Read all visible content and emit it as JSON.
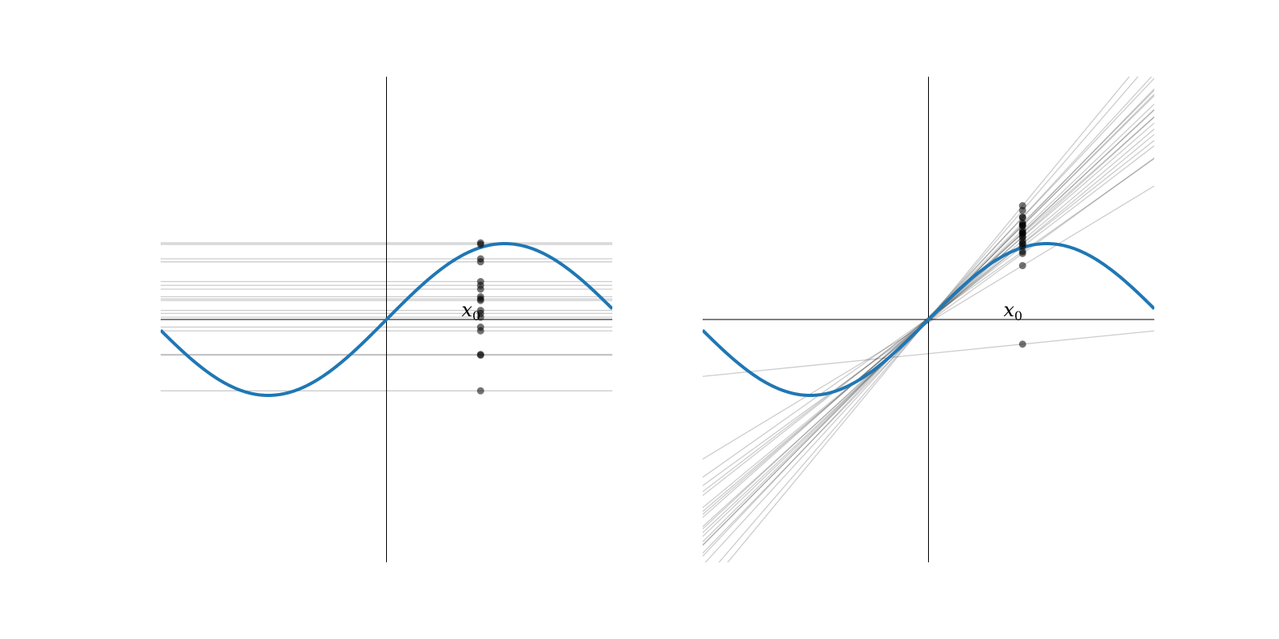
{
  "chart_data": [
    {
      "type": "line",
      "title": "",
      "xlabel": "",
      "ylabel": "",
      "xlim": [
        -3.0,
        3.0
      ],
      "ylim": [
        -3.2,
        3.2
      ],
      "grid": false,
      "axes": "centered",
      "curve": {
        "function": "sin",
        "color": "#1f77b4"
      },
      "x0": 1.25,
      "x0_label": "x",
      "x0_sub": "0",
      "fits": [
        {
          "intercept": 1.01,
          "slope": 0
        },
        {
          "intercept": 0.99,
          "slope": 0
        },
        {
          "intercept": 0.8,
          "slope": 0
        },
        {
          "intercept": 0.76,
          "slope": 0
        },
        {
          "intercept": 0.5,
          "slope": 0
        },
        {
          "intercept": 0.45,
          "slope": 0
        },
        {
          "intercept": 0.4,
          "slope": 0
        },
        {
          "intercept": 0.3,
          "slope": 0
        },
        {
          "intercept": 0.27,
          "slope": 0
        },
        {
          "intercept": 0.25,
          "slope": 0
        },
        {
          "intercept": 0.12,
          "slope": 0
        },
        {
          "intercept": 0.08,
          "slope": 0
        },
        {
          "intercept": 0.03,
          "slope": 0
        },
        {
          "intercept": -0.1,
          "slope": 0
        },
        {
          "intercept": -0.15,
          "slope": 0
        },
        {
          "intercept": -0.46,
          "slope": 0
        },
        {
          "intercept": -0.47,
          "slope": 0
        },
        {
          "intercept": -0.94,
          "slope": 0
        }
      ]
    },
    {
      "type": "line",
      "title": "",
      "xlabel": "",
      "ylabel": "",
      "xlim": [
        -3.0,
        3.0
      ],
      "ylim": [
        -3.2,
        3.2
      ],
      "grid": false,
      "axes": "centered",
      "curve": {
        "function": "sin",
        "color": "#1f77b4"
      },
      "x0": 1.25,
      "x0_label": "x",
      "x0_sub": "0",
      "fits": [
        {
          "intercept": 0.02,
          "slope": 1.0
        },
        {
          "intercept": 0.0,
          "slope": 0.92
        },
        {
          "intercept": -0.02,
          "slope": 0.82
        },
        {
          "intercept": 0.01,
          "slope": 0.98
        },
        {
          "intercept": -0.03,
          "slope": 0.72
        },
        {
          "intercept": 0.03,
          "slope": 0.88
        },
        {
          "intercept": 0.0,
          "slope": 1.08
        },
        {
          "intercept": -0.01,
          "slope": 0.95
        },
        {
          "intercept": 0.02,
          "slope": 0.78
        },
        {
          "intercept": -0.02,
          "slope": 1.02
        },
        {
          "intercept": 0.01,
          "slope": 0.86
        },
        {
          "intercept": 0.0,
          "slope": 1.15
        },
        {
          "intercept": -0.03,
          "slope": 0.9
        },
        {
          "intercept": 0.02,
          "slope": 0.7
        },
        {
          "intercept": 0.0,
          "slope": 0.99
        },
        {
          "intercept": -0.01,
          "slope": 0.84
        },
        {
          "intercept": 0.03,
          "slope": 1.05
        },
        {
          "intercept": -0.02,
          "slope": 0.93
        },
        {
          "intercept": 0.01,
          "slope": 0.76
        },
        {
          "intercept": 0.0,
          "slope": 1.2
        },
        {
          "intercept": -0.04,
          "slope": 0.6
        },
        {
          "intercept": -0.45,
          "slope": 0.1
        }
      ]
    }
  ]
}
